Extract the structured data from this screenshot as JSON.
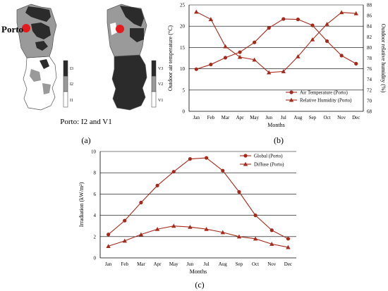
{
  "panel_labels": {
    "a": "(a)",
    "b": "(b)",
    "c": "(c)"
  },
  "maps": {
    "city_label": "Porto",
    "caption": "Porto: I2 and V1",
    "scale_left": [
      "I3",
      "I2",
      "I1"
    ],
    "scale_right": [
      "V3",
      "V2",
      "V1"
    ],
    "colors": {
      "dark": "#2b2b2b",
      "mid": "#9a9a9a",
      "light": "#ffffff",
      "marker": "#e41a1c"
    }
  },
  "chart_data": [
    {
      "id": "b",
      "type": "line",
      "categories": [
        "Jan",
        "Feb",
        "Mar",
        "Apr",
        "May",
        "Jun",
        "Jul",
        "Aug",
        "Sep",
        "Oct",
        "Nov",
        "Dec"
      ],
      "xlabel": "Months",
      "ylabel": "Outdoor air temperature (°C)",
      "y2label": "Outdoor relative humidity (%)",
      "ylim": [
        0,
        25
      ],
      "yticks": [
        0,
        5,
        10,
        15,
        20,
        25
      ],
      "y2lim": [
        68,
        88
      ],
      "y2ticks": [
        68,
        70,
        72,
        74,
        76,
        78,
        80,
        82,
        84,
        86,
        88
      ],
      "grid": "horizontal",
      "legend_position": "bottom-right",
      "series": [
        {
          "name": "Air Temperature (Porto)",
          "marker": "circle",
          "axis": "left",
          "values": [
            9.9,
            11.0,
            12.6,
            13.9,
            16.2,
            19.6,
            21.7,
            21.6,
            20.2,
            16.5,
            13.1,
            11.2
          ]
        },
        {
          "name": "Relative Humidity (Porto)",
          "marker": "triangle",
          "axis": "right",
          "values": [
            86.7,
            85.3,
            80.2,
            78.2,
            77.7,
            75.3,
            75.5,
            78.3,
            81.5,
            84.4,
            86.6,
            86.4
          ]
        }
      ],
      "color": "#a52a1c"
    },
    {
      "id": "c",
      "type": "line",
      "categories": [
        "Jan",
        "Feb",
        "Mar",
        "Apr",
        "May",
        "Jun",
        "Jul",
        "Aug",
        "Sep",
        "Oct",
        "Nov",
        "Dec"
      ],
      "xlabel": "Months",
      "ylabel": "Irradiation (kW/m²)",
      "ylim": [
        0,
        10
      ],
      "yticks": [
        0,
        2,
        4,
        6,
        8,
        10
      ],
      "grid": "horizontal",
      "legend_position": "top-right",
      "series": [
        {
          "name": "Global (Porto)",
          "marker": "circle",
          "values": [
            2.2,
            3.5,
            5.2,
            6.8,
            8.1,
            9.3,
            9.4,
            8.2,
            6.2,
            4.0,
            2.6,
            1.8
          ]
        },
        {
          "name": "Diffuse (Porto)",
          "marker": "triangle",
          "values": [
            1.1,
            1.6,
            2.2,
            2.7,
            3.0,
            2.9,
            2.7,
            2.4,
            2.0,
            1.8,
            1.3,
            1.0
          ]
        }
      ],
      "color": "#a52a1c"
    }
  ]
}
